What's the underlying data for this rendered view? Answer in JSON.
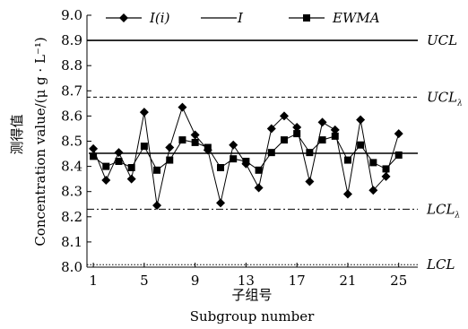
{
  "chart_data": {
    "type": "line",
    "title": "",
    "xlabel": [
      "子组号",
      "Subgroup number"
    ],
    "ylabel": [
      "测得值",
      "Concentration value/(μ g · L⁻¹)"
    ],
    "xlim": [
      0.5,
      26.5
    ],
    "ylim": [
      8.0,
      9.0
    ],
    "x_ticks": [
      1,
      5,
      9,
      13,
      17,
      21,
      25
    ],
    "y_ticks": [
      8.0,
      8.1,
      8.2,
      8.3,
      8.4,
      8.5,
      8.6,
      8.7,
      8.8,
      8.9,
      9.0
    ],
    "y_tick_labels": [
      "8.0",
      "8.1",
      "8.2",
      "8.3",
      "8.4",
      "8.5",
      "8.6",
      "8.7",
      "8.8",
      "8.9",
      "9.0"
    ],
    "legend": {
      "position": "top",
      "entries": [
        {
          "label": "I(i)",
          "marker": "diamond",
          "line": "solid"
        },
        {
          "label": "I",
          "marker": "none",
          "line": "solid"
        },
        {
          "label": "EWMA",
          "marker": "square",
          "line": "solid"
        }
      ]
    },
    "x": [
      1,
      2,
      3,
      4,
      5,
      6,
      7,
      8,
      9,
      10,
      11,
      12,
      13,
      14,
      15,
      16,
      17,
      18,
      19,
      20,
      21,
      22,
      23,
      24,
      25
    ],
    "series": [
      {
        "name": "I(i)",
        "marker": "diamond",
        "values": [
          8.47,
          8.345,
          8.455,
          8.35,
          8.615,
          8.245,
          8.475,
          8.635,
          8.525,
          8.465,
          8.255,
          8.485,
          8.41,
          8.315,
          8.55,
          8.6,
          8.555,
          8.34,
          8.575,
          8.545,
          8.29,
          8.585,
          8.305,
          8.36,
          8.53
        ]
      },
      {
        "name": "EWMA",
        "marker": "square",
        "values": [
          8.44,
          8.4,
          8.42,
          8.395,
          8.48,
          8.385,
          8.425,
          8.505,
          8.495,
          8.475,
          8.395,
          8.43,
          8.42,
          8.385,
          8.455,
          8.505,
          8.53,
          8.455,
          8.505,
          8.52,
          8.425,
          8.485,
          8.415,
          8.39,
          8.445
        ]
      }
    ],
    "reference_lines": [
      {
        "name": "I",
        "value": 8.452,
        "style": "solid",
        "label": ""
      },
      {
        "name": "UCL",
        "value": 8.9,
        "style": "solid",
        "label": "UCL"
      },
      {
        "name": "UCL_lambda",
        "value": 8.675,
        "style": "dashed",
        "label": "UCL",
        "subscript": "λ"
      },
      {
        "name": "LCL_lambda",
        "value": 8.23,
        "style": "dashdot",
        "label": "LCL",
        "subscript": "λ"
      },
      {
        "name": "LCL",
        "value": 8.01,
        "style": "dotted",
        "label": "LCL",
        "subscript": ""
      }
    ],
    "grid": false
  }
}
